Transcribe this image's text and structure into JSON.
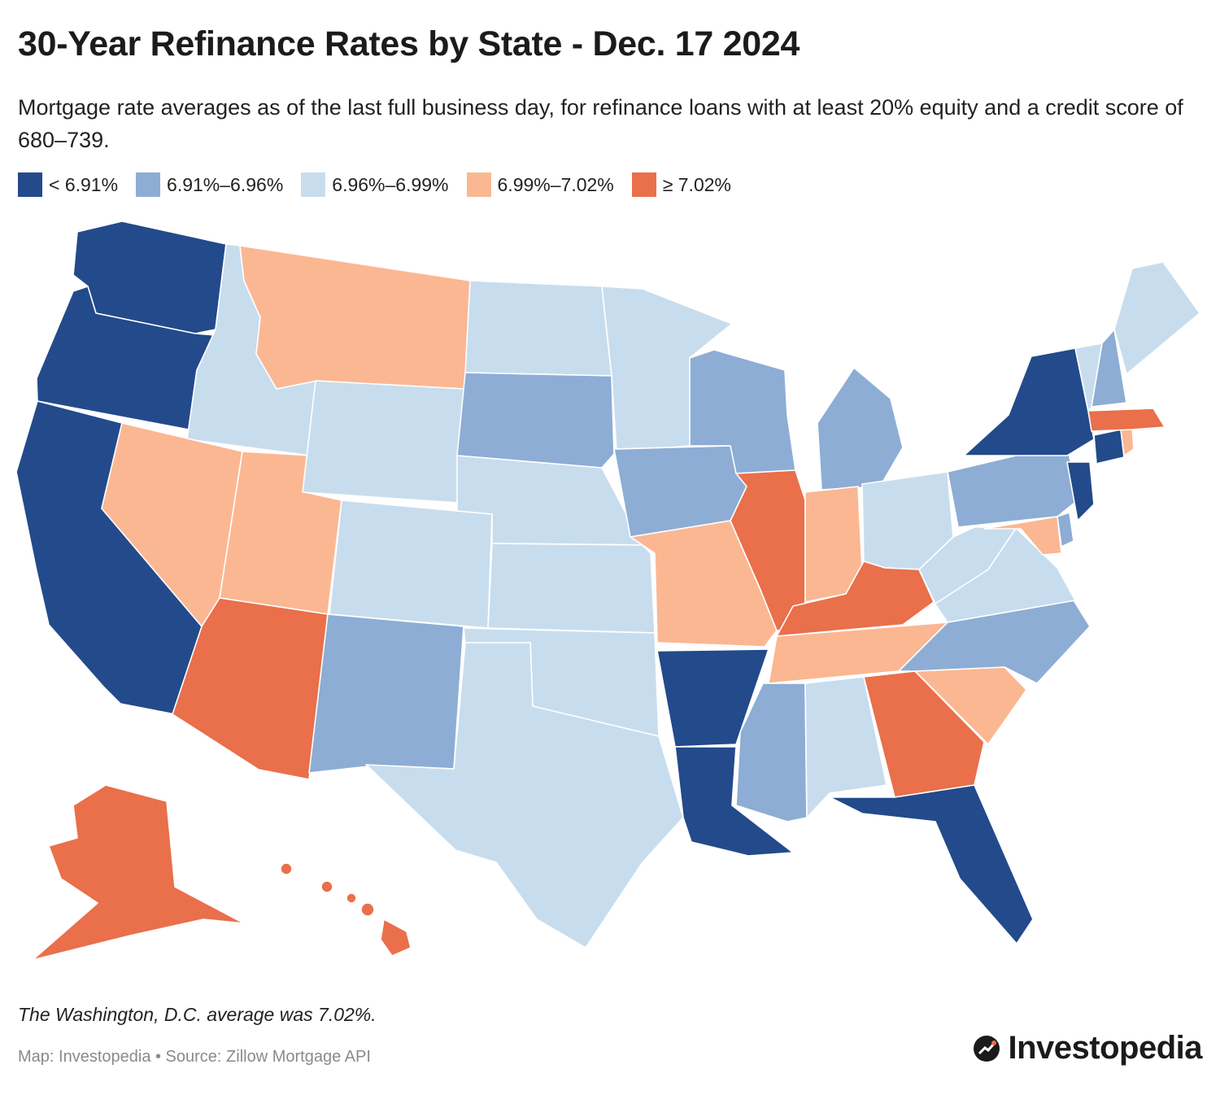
{
  "header": {
    "title": "30-Year Refinance Rates by State - Dec. 17 2024",
    "subtitle": "Mortgage rate averages as of the last full business day, for refinance loans with at least 20% equity and a credit score of 680–739."
  },
  "legend": [
    {
      "label": "< 6.91%",
      "color": "#234a8b"
    },
    {
      "label": "6.91%–6.96%",
      "color": "#8dadd5"
    },
    {
      "label": "6.96%–6.99%",
      "color": "#c7ddee"
    },
    {
      "label": "6.99%–7.02%",
      "color": "#fbb792"
    },
    {
      "label": "≥ 7.02%",
      "color": "#ea6f4b"
    }
  ],
  "map": {
    "state_categories": {
      "WA": 0,
      "OR": 0,
      "CA": 0,
      "AR": 0,
      "LA": 0,
      "FL": 0,
      "NY": 0,
      "NJ": 0,
      "CT": 0,
      "SD": 1,
      "IA": 1,
      "WI": 1,
      "MI": 1,
      "NM": 1,
      "MS": 1,
      "NC": 1,
      "PA": 1,
      "NH": 1,
      "DE": 1,
      "ID": 2,
      "WY": 2,
      "ND": 2,
      "MN": 2,
      "NE": 2,
      "CO": 2,
      "KS": 2,
      "OK": 2,
      "TX": 2,
      "AL": 2,
      "OH": 2,
      "WV": 2,
      "VA": 2,
      "VT": 2,
      "ME": 2,
      "MT": 3,
      "NV": 3,
      "UT": 3,
      "MO": 3,
      "IN": 3,
      "TN": 3,
      "SC": 3,
      "MD": 3,
      "RI": 3,
      "AZ": 4,
      "IL": 4,
      "KY": 4,
      "GA": 4,
      "MA": 4,
      "AK": 4,
      "HI": 4
    }
  },
  "footnote": "The Washington, D.C. average was 7.02%.",
  "source": "Map: Investopedia • Source: Zillow Mortgage API",
  "brand": "Investopedia"
}
